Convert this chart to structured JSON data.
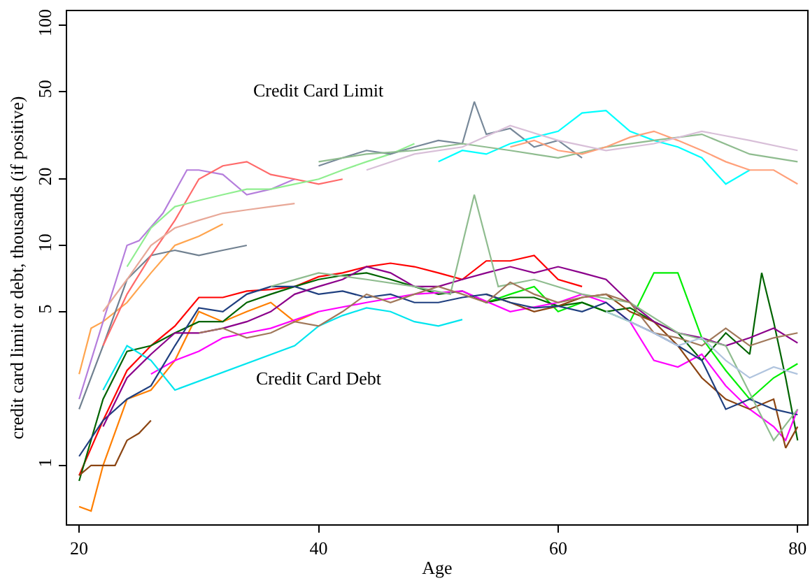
{
  "chart_data": {
    "type": "line",
    "xlabel": "Age",
    "ylabel": "credit card limit or debt, thousands (if positive)",
    "log": "y",
    "marker": "none",
    "line_style": "solid",
    "xlim": [
      19,
      80.8
    ],
    "xticks": [
      20,
      40,
      60,
      80
    ],
    "ylim": [
      0.54,
      116
    ],
    "yticks": [
      1,
      5,
      10,
      20,
      50,
      100
    ],
    "annotations": [
      "Credit Card Limit",
      "Credit Card Debt"
    ],
    "series": [
      {
        "color": "#ffa54f",
        "x": [
          20,
          21,
          22,
          24,
          26,
          28,
          30,
          32
        ],
        "values": [
          2.6,
          4.2,
          4.5,
          5.5,
          7.5,
          10,
          11,
          12.5
        ]
      },
      {
        "color": "#b57edc",
        "x": [
          20,
          22,
          24,
          25,
          27,
          29,
          30,
          32,
          34,
          36,
          38
        ],
        "values": [
          2.0,
          4.5,
          10,
          10.5,
          14,
          22,
          22,
          21,
          17,
          18,
          20
        ]
      },
      {
        "color": "#708090",
        "x": [
          20,
          22,
          24,
          26,
          28,
          30,
          32,
          34
        ],
        "values": [
          1.8,
          3.5,
          7,
          9,
          9.5,
          9,
          9.5,
          10
        ]
      },
      {
        "color": "#ff6a6a",
        "x": [
          22,
          24,
          26,
          28,
          30,
          32,
          34,
          36,
          38,
          40,
          42
        ],
        "values": [
          3.5,
          6,
          9,
          13,
          20,
          23,
          24,
          21,
          20,
          19,
          20
        ]
      },
      {
        "color": "#90ee90",
        "x": [
          24,
          26,
          28,
          30,
          32,
          34,
          36,
          38,
          40,
          42,
          44,
          46,
          48
        ],
        "values": [
          8,
          12,
          15,
          16,
          17,
          18,
          18,
          19,
          20,
          22,
          24,
          26,
          29
        ]
      },
      {
        "color": "#e8a898",
        "x": [
          22,
          24,
          26,
          28,
          30,
          32,
          34,
          36,
          38
        ],
        "values": [
          5,
          7,
          10,
          12,
          13,
          14,
          14.5,
          15,
          15.5
        ]
      },
      {
        "color": "#778899",
        "x": [
          40,
          42,
          44,
          46,
          48,
          50,
          52,
          53,
          54,
          56,
          58,
          60,
          62
        ],
        "values": [
          23,
          25,
          27,
          26,
          28,
          30,
          29,
          45,
          32,
          34,
          28,
          30,
          25
        ]
      },
      {
        "color": "#00ffff",
        "x": [
          50,
          52,
          54,
          56,
          58,
          60,
          62,
          64,
          66,
          68,
          70,
          72,
          74,
          76
        ],
        "values": [
          24,
          27,
          26,
          29,
          31,
          33,
          40,
          41,
          33,
          30,
          28,
          25,
          19,
          22
        ]
      },
      {
        "color": "#8fbc8f",
        "x": [
          40,
          44,
          48,
          52,
          56,
          60,
          64,
          68,
          72,
          76,
          80
        ],
        "values": [
          24,
          26,
          27,
          29,
          27,
          25,
          28,
          30,
          32,
          26,
          24
        ]
      },
      {
        "color": "#ffa07a",
        "x": [
          56,
          58,
          60,
          62,
          64,
          66,
          68,
          70,
          72,
          74,
          76,
          78,
          80
        ],
        "values": [
          28,
          30,
          27,
          26,
          28,
          31,
          33,
          30,
          27,
          24,
          22,
          22,
          19
        ]
      },
      {
        "color": "#d8bfd8",
        "x": [
          44,
          48,
          52,
          56,
          60,
          64,
          68,
          72,
          76,
          80
        ],
        "values": [
          22,
          26,
          28,
          35,
          30,
          27,
          29,
          33,
          30,
          27
        ]
      },
      {
        "color": "#ff0000",
        "x": [
          20,
          22,
          24,
          26,
          28,
          30,
          32,
          34,
          36,
          38,
          40,
          42,
          44,
          46,
          48,
          50,
          52,
          54,
          56,
          58,
          60,
          62
        ],
        "values": [
          0.9,
          1.6,
          2.7,
          3.5,
          4.3,
          5.8,
          5.8,
          6.2,
          6.3,
          6.5,
          7.2,
          7.5,
          8.0,
          8.3,
          8.0,
          7.5,
          7.0,
          8.5,
          8.5,
          9.0,
          7.0,
          6.5
        ]
      },
      {
        "color": "#ff7f00",
        "x": [
          20,
          21,
          22,
          24,
          26,
          28,
          30,
          32,
          34,
          36,
          38,
          40
        ],
        "values": [
          0.65,
          0.62,
          1.0,
          2.0,
          2.2,
          3.0,
          5.0,
          4.5,
          5.0,
          5.5,
          4.5,
          5.0
        ]
      },
      {
        "color": "#00ee00",
        "x": [
          54,
          56,
          58,
          60,
          62,
          64,
          66,
          68,
          70,
          72,
          74,
          76,
          78,
          80
        ],
        "values": [
          5.5,
          6.0,
          6.5,
          5.0,
          5.5,
          5.0,
          4.5,
          7.5,
          7.5,
          3.8,
          2.7,
          2.0,
          2.5,
          2.9
        ]
      },
      {
        "color": "#006400",
        "x": [
          20,
          22,
          24,
          26,
          28,
          30,
          32,
          34,
          36,
          38,
          40,
          42,
          44,
          46,
          48,
          50,
          52,
          54,
          56,
          58,
          60,
          62,
          64,
          66,
          68,
          70,
          72,
          74,
          76,
          77,
          78,
          79,
          80
        ],
        "values": [
          0.85,
          2.0,
          3.3,
          3.5,
          4.0,
          4.5,
          4.5,
          5.5,
          6.0,
          6.5,
          7.0,
          7.3,
          7.5,
          7.0,
          6.5,
          6.0,
          6.2,
          5.5,
          5.8,
          5.8,
          5.3,
          5.5,
          5.0,
          5.2,
          4.5,
          4.0,
          3.0,
          4.0,
          3.2,
          7.5,
          4.5,
          2.5,
          1.3
        ]
      },
      {
        "color": "#ff00ff",
        "x": [
          26,
          28,
          30,
          32,
          34,
          36,
          40,
          44,
          48,
          52,
          56,
          60,
          62,
          64,
          66,
          68,
          70,
          72,
          74,
          76,
          78,
          79,
          80
        ],
        "values": [
          2.6,
          3.0,
          3.3,
          3.8,
          4.0,
          4.2,
          5.0,
          5.5,
          6.0,
          6.2,
          5.0,
          5.5,
          6.0,
          5.5,
          4.5,
          3.0,
          2.8,
          3.2,
          2.3,
          1.8,
          1.5,
          1.3,
          1.8
        ]
      },
      {
        "color": "#00e5ee",
        "x": [
          22,
          24,
          26,
          28,
          38,
          40,
          42,
          44,
          46,
          48,
          50,
          52
        ],
        "values": [
          2.2,
          3.5,
          3.0,
          2.2,
          3.5,
          4.3,
          4.8,
          5.2,
          5.0,
          4.5,
          4.3,
          4.6
        ]
      },
      {
        "color": "#8b4513",
        "x": [
          20,
          21,
          22,
          23,
          24,
          25,
          26
        ],
        "values": [
          0.9,
          1.0,
          1.0,
          1.0,
          1.3,
          1.4,
          1.6
        ]
      },
      {
        "color": "#8b4513",
        "x": [
          54,
          56,
          58,
          60,
          62,
          64,
          66,
          68,
          70,
          72,
          74,
          76,
          78,
          79,
          80
        ],
        "values": [
          6.0,
          5.5,
          5.0,
          5.3,
          5.8,
          6.0,
          5.0,
          4.5,
          3.5,
          2.5,
          2.0,
          1.8,
          2.0,
          1.2,
          1.5
        ]
      },
      {
        "color": "#1f3f7f",
        "x": [
          20,
          22,
          24,
          26,
          28,
          30,
          32,
          34,
          36,
          38,
          40,
          42,
          44,
          46,
          48,
          50,
          52,
          54,
          56,
          58,
          60,
          62,
          64,
          66,
          68,
          70,
          72,
          74,
          76,
          78,
          80
        ],
        "values": [
          1.1,
          1.6,
          2.0,
          2.3,
          3.5,
          5.2,
          5.0,
          6.0,
          6.5,
          6.5,
          6.0,
          6.2,
          5.8,
          6.0,
          5.5,
          5.5,
          5.8,
          6.0,
          5.5,
          5.2,
          5.3,
          5.0,
          5.5,
          4.5,
          4.0,
          3.5,
          3.0,
          1.8,
          2.0,
          1.8,
          1.7
        ]
      },
      {
        "color": "#8b008b",
        "x": [
          22,
          24,
          26,
          28,
          30,
          32,
          34,
          36,
          38,
          40,
          42,
          44,
          46,
          48,
          50,
          52,
          54,
          56,
          58,
          60,
          62,
          64,
          66,
          68,
          70,
          72,
          74,
          76,
          78,
          80
        ],
        "values": [
          1.5,
          2.5,
          3.2,
          4.0,
          4.0,
          4.2,
          4.5,
          5.0,
          6.0,
          6.5,
          7.0,
          8.0,
          7.5,
          6.5,
          6.5,
          7.0,
          7.5,
          8.0,
          7.5,
          8.0,
          7.5,
          7.0,
          5.5,
          4.5,
          4.0,
          3.8,
          3.5,
          3.8,
          4.2,
          3.6
        ]
      },
      {
        "color": "#8fbc8f",
        "x": [
          36,
          40,
          44,
          48,
          51,
          53,
          55,
          58,
          62,
          66,
          70,
          74,
          78,
          80
        ],
        "values": [
          6.5,
          7.5,
          7.0,
          6.5,
          6.0,
          17,
          6.5,
          7.0,
          6.0,
          5.5,
          4.0,
          3.5,
          1.3,
          1.8
        ]
      },
      {
        "color": "#a0785a",
        "x": [
          30,
          32,
          34,
          36,
          38,
          40,
          42,
          44,
          46,
          48,
          50,
          52,
          54,
          56,
          58,
          60,
          62,
          64,
          66,
          68,
          70,
          72,
          74,
          76,
          78,
          80
        ],
        "values": [
          4.0,
          4.2,
          3.8,
          4.0,
          4.5,
          4.3,
          5.0,
          6.0,
          5.5,
          6.0,
          6.5,
          6.0,
          5.5,
          6.8,
          6.0,
          5.5,
          5.8,
          6.0,
          5.5,
          4.0,
          3.8,
          3.5,
          4.2,
          3.5,
          3.8,
          4.0
        ]
      },
      {
        "color": "#b0c4de",
        "x": [
          64,
          66,
          68,
          70,
          72,
          74,
          76,
          78,
          80
        ],
        "values": [
          5.0,
          4.5,
          4.0,
          3.5,
          3.8,
          3.0,
          2.5,
          2.8,
          2.6
        ]
      }
    ]
  }
}
